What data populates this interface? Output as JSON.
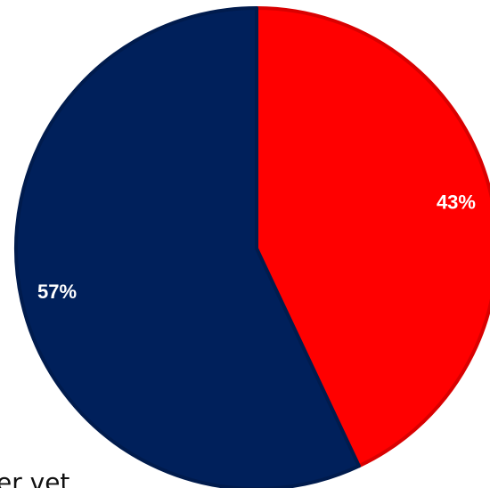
{
  "chart_data": {
    "type": "pie",
    "title": "",
    "slices": [
      {
        "value": 43,
        "label": "43%",
        "color": "#ff0000"
      },
      {
        "value": 57,
        "label": "57%",
        "color": "#00205b"
      }
    ],
    "start_angle_deg": 0,
    "direction": "clockwise",
    "legend": "none"
  },
  "overflow_text": "er vet"
}
